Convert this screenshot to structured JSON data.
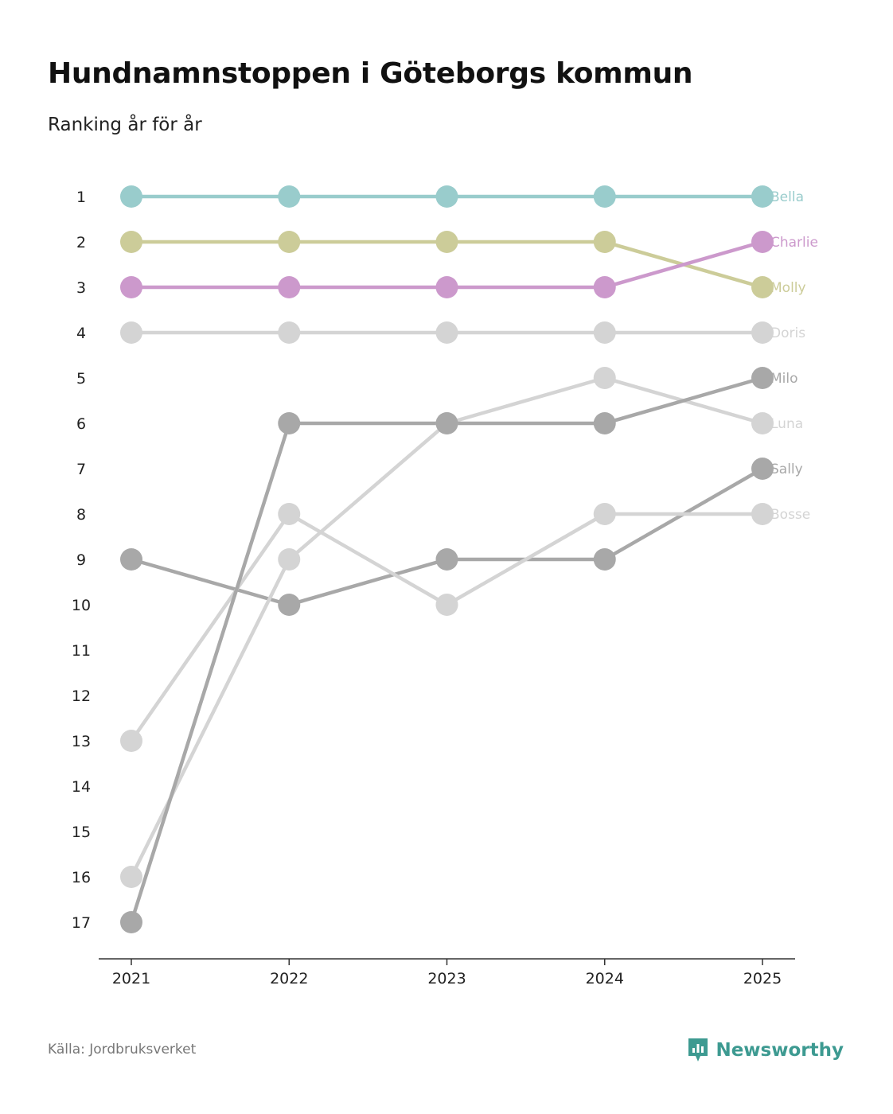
{
  "title": "Hundnamnstoppen i Göteborgs kommun",
  "subtitle": "Ranking år för år",
  "source": "Källa: Jordbruksverket",
  "brand": {
    "name": "Newsworthy",
    "icon": "newsworthy-logo-icon",
    "color": "#3d9a91"
  },
  "chart_data": {
    "type": "line",
    "title": "Hundnamnstoppen i Göteborgs kommun",
    "subtitle": "Ranking år för år",
    "x": [
      "2021",
      "2022",
      "2023",
      "2024",
      "2025"
    ],
    "y_ticks": [
      1,
      2,
      3,
      4,
      5,
      6,
      7,
      8,
      9,
      10,
      11,
      12,
      13,
      14,
      15,
      16,
      17
    ],
    "ylim": [
      1,
      17
    ],
    "y_inverted": true,
    "grid": false,
    "series": [
      {
        "name": "Sally",
        "color": "#a8a8a8",
        "values": [
          9,
          10,
          9,
          9,
          7
        ]
      },
      {
        "name": "Bosse",
        "color": "#d4d4d4",
        "values": [
          13,
          8,
          10,
          8,
          8
        ]
      },
      {
        "name": "Luna",
        "color": "#d4d4d4",
        "values": [
          16,
          9,
          6,
          5,
          6
        ]
      },
      {
        "name": "Milo",
        "color": "#a8a8a8",
        "values": [
          17,
          6,
          6,
          6,
          5
        ]
      },
      {
        "name": "Doris",
        "color": "#d4d4d4",
        "values": [
          4,
          4,
          4,
          4,
          4
        ]
      },
      {
        "name": "Molly",
        "color": "#cccc99",
        "values": [
          2,
          2,
          2,
          2,
          3
        ]
      },
      {
        "name": "Charlie",
        "color": "#cc99cc",
        "values": [
          3,
          3,
          3,
          3,
          2
        ]
      },
      {
        "name": "Bella",
        "color": "#99cccc",
        "values": [
          1,
          1,
          1,
          1,
          1
        ]
      }
    ]
  }
}
